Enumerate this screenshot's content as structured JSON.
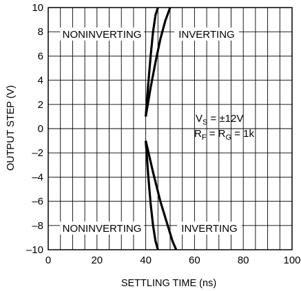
{
  "chart_data": {
    "type": "line",
    "xlabel": "SETTLING TIME (ns)",
    "ylabel": "OUTPUT STEP (V)",
    "xlim": [
      0,
      100
    ],
    "ylim": [
      -10,
      10
    ],
    "x_ticks": [
      0,
      20,
      40,
      60,
      80,
      100
    ],
    "y_ticks": [
      -10,
      -8,
      -6,
      -4,
      -2,
      0,
      2,
      4,
      6,
      8,
      10
    ],
    "y_tick_labels": [
      "–10",
      "–8",
      "–6",
      "–4",
      "–2",
      "0",
      "2",
      "4",
      "6",
      "8",
      "10"
    ],
    "grid": true,
    "minor_grid_x": 5,
    "series": [
      {
        "name": "NONINVERTING",
        "x": [
          40,
          41,
          42,
          43,
          44,
          45
        ],
        "y": [
          1,
          3.6,
          6,
          8,
          9.4,
          10
        ]
      },
      {
        "name": "INVERTING",
        "x": [
          40,
          42,
          44,
          46,
          48,
          50
        ],
        "y": [
          1,
          3.4,
          5.5,
          7.4,
          8.9,
          10
        ]
      },
      {
        "name": "NONINVERTING",
        "x": [
          40,
          41,
          42,
          43,
          44,
          45
        ],
        "y": [
          -1,
          -3.8,
          -6.2,
          -8,
          -9.3,
          -10
        ]
      },
      {
        "name": "INVERTING",
        "x": [
          40,
          43,
          46,
          49,
          51,
          52.5
        ],
        "y": [
          -1,
          -3.6,
          -6,
          -8,
          -9.3,
          -10
        ]
      }
    ],
    "region_labels": {
      "top_left": "NONINVERTING",
      "top_right": "INVERTING",
      "bottom_left": "NONINVERTING",
      "bottom_right": "INVERTING"
    },
    "annotation": {
      "vs_main": "V",
      "vs_sub": "S",
      "vs_rest": " = ±12V",
      "rf_main": "R",
      "rf_sub": "F",
      "rf_mid": " = R",
      "rg_sub": "G",
      "rf_rest": " = 1k"
    }
  }
}
